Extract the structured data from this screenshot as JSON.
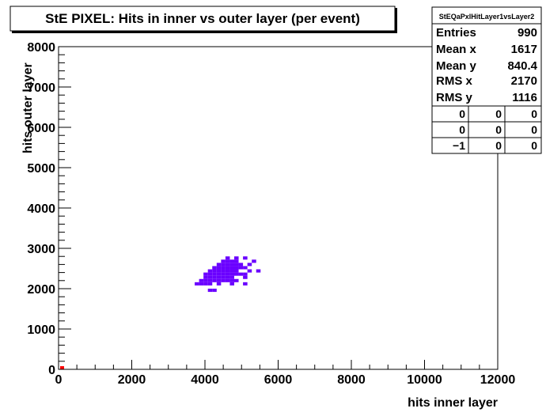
{
  "chart_data": {
    "type": "heatmap",
    "title": "StE PIXEL: Hits in inner vs outer layer (per event)",
    "xlabel": "hits inner layer",
    "ylabel": "hits outer layer",
    "xlim": [
      0,
      12000
    ],
    "ylim": [
      0,
      8000
    ],
    "x_ticks": [
      "0",
      "2000",
      "4000",
      "6000",
      "8000",
      "10000",
      "12000"
    ],
    "y_ticks": [
      "0",
      "1000",
      "2000",
      "3000",
      "4000",
      "5000",
      "6000",
      "7000",
      "8000"
    ],
    "bin_width": [
      120,
      80
    ],
    "fill_color": "#6a00ff",
    "origin_marker_color": "#ff0000",
    "bins": [
      [
        4140,
        1960
      ],
      [
        4260,
        1960
      ],
      [
        3780,
        2120
      ],
      [
        3900,
        2120
      ],
      [
        4020,
        2120
      ],
      [
        4140,
        2120
      ],
      [
        4380,
        2120
      ],
      [
        4740,
        2120
      ],
      [
        5100,
        2120
      ],
      [
        3900,
        2200
      ],
      [
        4020,
        2200
      ],
      [
        4140,
        2200
      ],
      [
        4260,
        2200
      ],
      [
        4380,
        2200
      ],
      [
        4500,
        2200
      ],
      [
        4620,
        2200
      ],
      [
        4740,
        2200
      ],
      [
        4860,
        2200
      ],
      [
        4020,
        2280
      ],
      [
        4140,
        2280
      ],
      [
        4260,
        2280
      ],
      [
        4380,
        2280
      ],
      [
        4500,
        2280
      ],
      [
        4620,
        2280
      ],
      [
        4740,
        2280
      ],
      [
        5100,
        2280
      ],
      [
        4020,
        2360
      ],
      [
        4140,
        2360
      ],
      [
        4260,
        2360
      ],
      [
        4380,
        2360
      ],
      [
        4500,
        2360
      ],
      [
        4620,
        2360
      ],
      [
        4740,
        2360
      ],
      [
        4860,
        2360
      ],
      [
        4980,
        2360
      ],
      [
        5100,
        2360
      ],
      [
        4140,
        2440
      ],
      [
        4260,
        2440
      ],
      [
        4380,
        2440
      ],
      [
        4500,
        2440
      ],
      [
        4620,
        2440
      ],
      [
        4740,
        2440
      ],
      [
        4860,
        2440
      ],
      [
        5220,
        2440
      ],
      [
        5460,
        2440
      ],
      [
        4260,
        2520
      ],
      [
        4380,
        2520
      ],
      [
        4500,
        2520
      ],
      [
        4620,
        2520
      ],
      [
        4740,
        2520
      ],
      [
        4860,
        2520
      ],
      [
        4980,
        2520
      ],
      [
        5100,
        2520
      ],
      [
        4380,
        2600
      ],
      [
        4500,
        2600
      ],
      [
        4620,
        2600
      ],
      [
        4740,
        2600
      ],
      [
        4860,
        2600
      ],
      [
        4980,
        2600
      ],
      [
        5220,
        2600
      ],
      [
        4500,
        2680
      ],
      [
        4620,
        2680
      ],
      [
        4740,
        2680
      ],
      [
        4860,
        2680
      ],
      [
        5340,
        2680
      ],
      [
        4620,
        2760
      ],
      [
        4860,
        2760
      ],
      [
        5100,
        2760
      ]
    ]
  },
  "stats_box": {
    "name": "StEQaPxlHitLayer1vsLayer2",
    "rows": [
      {
        "label": "Entries",
        "value": "990"
      },
      {
        "label": "Mean x",
        "value": "1617"
      },
      {
        "label": "Mean y",
        "value": "840.4"
      },
      {
        "label": "RMS x",
        "value": "2170"
      },
      {
        "label": "RMS y",
        "value": "1116"
      }
    ],
    "grid": [
      [
        "0",
        "0",
        "0"
      ],
      [
        "0",
        "0",
        "0"
      ],
      [
        "−1",
        "0",
        "0"
      ]
    ]
  }
}
